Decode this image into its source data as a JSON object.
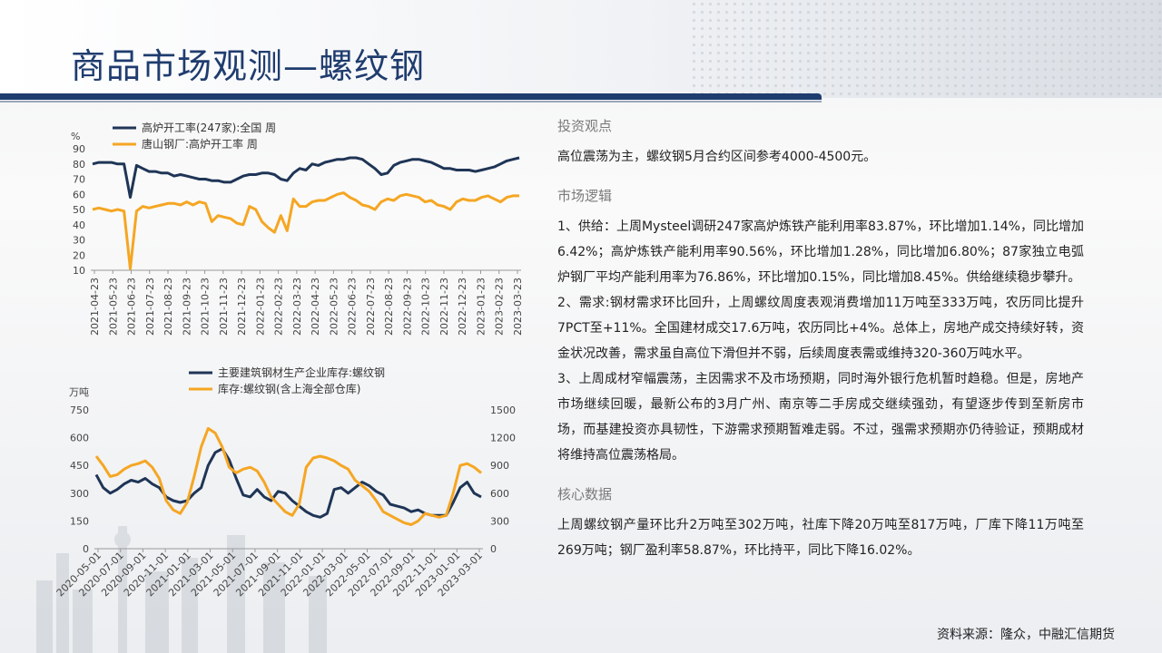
{
  "page": {
    "title": "商品市场观测—螺纹钢",
    "source": "资料来源：隆众，中融汇信期货"
  },
  "right": {
    "view_title": "投资观点",
    "view_text": "高位震荡为主，螺纹钢5月合约区间参考4000-4500元。",
    "logic_title": "市场逻辑",
    "logic_p1": "1、供给：上周Mysteel调研247家高炉炼铁产能利用率83.87%，环比增加1.14%，同比增加6.42%；高炉炼铁产能利用率90.56%，环比增加1.28%，同比增加6.80%；87家独立电弧炉钢厂平均产能利用率为76.86%，环比增加0.15%，同比增加8.45%。供给继续稳步攀升。",
    "logic_p2": "2、需求:钢材需求环比回升，上周螺纹周度表观消费增加11万吨至333万吨，农历同比提升7PCT至+11%。全国建材成交17.6万吨，农历同比+4%。总体上，房地产成交持续好转，资金状况改善，需求虽自高位下滑但并不弱，后续周度表需或维持320-360万吨水平。",
    "logic_p3": "3、上周成材窄幅震荡，主因需求不及市场预期，同时海外银行危机暂时趋稳。但是，房地产市场继续回暖，最新公布的3月广州、南京等二手房成交继续强劲，有望逐步传到至新房市场，而基建投资亦具韧性，下游需求预期暂难走弱。不过，强需求预期亦仍待验证，预期成材将维持高位震荡格局。",
    "core_title": "核心数据",
    "core_text": "上周螺纹钢产量环比升2万吨至302万吨，社库下降20万吨至817万吨，厂库下降11万吨至269万吨；钢厂盈利率58.87%，环比持平，同比下降16.02%。"
  },
  "colors": {
    "navy": "#1f3556",
    "orange": "#f5a623",
    "title": "#1f3c6e"
  },
  "chart_data": [
    {
      "type": "line",
      "ylabel": "%",
      "ylim": [
        10,
        90
      ],
      "yticks": [
        10,
        20,
        30,
        40,
        50,
        60,
        70,
        80,
        90
      ],
      "xticks": [
        "2021-04-23",
        "2021-05-23",
        "2021-06-23",
        "2021-07-23",
        "2021-08-23",
        "2021-09-23",
        "2021-10-23",
        "2021-11-23",
        "2021-12-23",
        "2022-01-23",
        "2022-02-23",
        "2022-03-23",
        "2022-04-23",
        "2022-05-23",
        "2022-06-23",
        "2022-07-23",
        "2022-08-23",
        "2022-09-23",
        "2022-10-23",
        "2022-11-23",
        "2022-12-23",
        "2023-01-23",
        "2023-02-23",
        "2023-03-23"
      ],
      "legend_position": "top",
      "series": [
        {
          "name": "高炉开工率(247家):全国  周",
          "color": "#1f3556",
          "values": [
            80,
            81,
            81,
            81,
            80,
            80,
            58,
            79,
            77,
            75,
            75,
            74,
            74,
            72,
            73,
            72,
            71,
            70,
            70,
            69,
            69,
            68,
            68,
            70,
            72,
            73,
            73,
            74,
            74,
            73,
            70,
            69,
            74,
            77,
            76,
            80,
            79,
            81,
            82,
            83,
            83,
            84,
            84,
            83,
            80,
            77,
            73,
            74,
            79,
            81,
            82,
            83,
            83,
            82,
            81,
            79,
            77,
            77,
            76,
            76,
            76,
            75,
            76,
            77,
            78,
            80,
            82,
            83,
            84
          ]
        },
        {
          "name": "唐山钢厂:高炉开工率  周",
          "color": "#f5a623",
          "values": [
            50,
            51,
            50,
            49,
            50,
            49,
            11,
            49,
            52,
            51,
            52,
            53,
            54,
            54,
            53,
            55,
            53,
            55,
            54,
            42,
            46,
            45,
            44,
            41,
            40,
            52,
            50,
            42,
            38,
            35,
            46,
            36,
            57,
            52,
            52,
            55,
            56,
            56,
            58,
            60,
            61,
            58,
            56,
            53,
            52,
            50,
            55,
            57,
            56,
            59,
            60,
            59,
            58,
            55,
            56,
            53,
            52,
            50,
            55,
            57,
            56,
            56,
            58,
            59,
            57,
            55,
            58,
            59,
            59
          ]
        }
      ]
    },
    {
      "type": "line",
      "ylabel": "万吨",
      "ylim": [
        0,
        750
      ],
      "y2lim": [
        0,
        1500
      ],
      "yticks": [
        0,
        150,
        300,
        450,
        600,
        750
      ],
      "y2ticks": [
        0,
        300,
        600,
        900,
        1200,
        1500
      ],
      "xticks": [
        "2020-05-01",
        "2020-07-01",
        "2020-09-01",
        "2020-11-01",
        "2021-01-01",
        "2021-03-01",
        "2021-05-01",
        "2021-07-01",
        "2021-09-01",
        "2021-11-01",
        "2022-01-01",
        "2022-03-01",
        "2022-05-01",
        "2022-07-01",
        "2022-09-01",
        "2022-11-01",
        "2023-01-01",
        "2023-03-01"
      ],
      "legend_position": "top",
      "series": [
        {
          "name": "主要建筑钢材生产企业库存:螺纹钢",
          "color": "#1f3556",
          "axis": "left",
          "values": [
            400,
            330,
            300,
            320,
            350,
            370,
            360,
            380,
            350,
            330,
            280,
            260,
            250,
            260,
            300,
            330,
            450,
            520,
            540,
            480,
            380,
            290,
            280,
            320,
            280,
            260,
            310,
            300,
            260,
            230,
            200,
            180,
            170,
            190,
            320,
            330,
            300,
            330,
            360,
            340,
            310,
            290,
            240,
            230,
            220,
            200,
            210,
            190,
            180,
            180,
            180,
            250,
            330,
            360,
            300,
            280
          ]
        },
        {
          "name": "库存:螺纹钢(含上海全部仓库)",
          "color": "#f5a623",
          "axis": "right",
          "values": [
            1000,
            900,
            780,
            800,
            860,
            900,
            920,
            950,
            880,
            760,
            520,
            420,
            380,
            500,
            780,
            1100,
            1300,
            1250,
            1100,
            880,
            820,
            860,
            880,
            840,
            720,
            560,
            480,
            400,
            360,
            480,
            880,
            980,
            1000,
            980,
            950,
            900,
            860,
            740,
            680,
            620,
            520,
            400,
            360,
            320,
            280,
            260,
            300,
            380,
            360,
            340,
            360,
            600,
            900,
            920,
            880,
            820
          ]
        }
      ]
    }
  ]
}
